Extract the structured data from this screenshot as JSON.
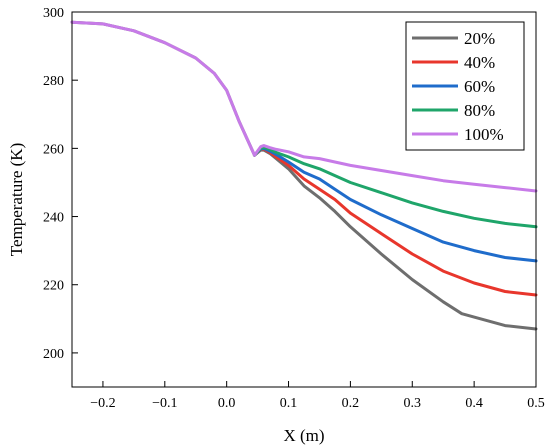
{
  "chart_data": {
    "type": "line",
    "xlabel": "X (m)",
    "ylabel": "Temperature (K)",
    "xlim": [
      -0.25,
      0.5
    ],
    "ylim": [
      190,
      300
    ],
    "x_ticks": [
      "-0.2",
      "-0.1",
      "0.0",
      "0.1",
      "0.2",
      "0.3",
      "0.4",
      "0.5"
    ],
    "x_tick_values": [
      -0.2,
      -0.1,
      0.0,
      0.1,
      0.2,
      0.3,
      0.4,
      0.5
    ],
    "y_ticks": [
      "200",
      "220",
      "240",
      "260",
      "280",
      "300"
    ],
    "y_tick_values": [
      200,
      220,
      240,
      260,
      280,
      300
    ],
    "grid": false,
    "legend_position": "top-right",
    "series": [
      {
        "name": "20%",
        "color": "#6e6e6e",
        "x": [
          -0.25,
          -0.2,
          -0.15,
          -0.1,
          -0.05,
          -0.02,
          0.0,
          0.02,
          0.045,
          0.055,
          0.06,
          0.07,
          0.08,
          0.1,
          0.125,
          0.15,
          0.175,
          0.2,
          0.25,
          0.3,
          0.35,
          0.38,
          0.4,
          0.45,
          0.5
        ],
        "y": [
          297,
          296.5,
          294.5,
          291,
          286.5,
          282,
          277,
          268,
          258,
          259.5,
          259.5,
          258.5,
          257,
          254,
          249,
          245.5,
          241.5,
          237,
          229,
          221.5,
          215,
          211.5,
          210.5,
          208,
          207
        ]
      },
      {
        "name": "40%",
        "color": "#e8362c",
        "x": [
          0.045,
          0.055,
          0.06,
          0.07,
          0.08,
          0.1,
          0.125,
          0.15,
          0.175,
          0.2,
          0.25,
          0.3,
          0.35,
          0.4,
          0.45,
          0.5
        ],
        "y": [
          258,
          259.7,
          259.8,
          258.8,
          257.5,
          255,
          251,
          248,
          245,
          241,
          235,
          229,
          224,
          220.5,
          218,
          217
        ]
      },
      {
        "name": "60%",
        "color": "#1f6ccb",
        "x": [
          0.045,
          0.055,
          0.06,
          0.07,
          0.08,
          0.1,
          0.125,
          0.15,
          0.175,
          0.2,
          0.25,
          0.3,
          0.35,
          0.4,
          0.45,
          0.5
        ],
        "y": [
          258,
          259.8,
          260,
          259.2,
          258.2,
          256,
          253,
          251,
          248,
          245,
          240.5,
          236.5,
          232.5,
          230,
          228,
          227
        ]
      },
      {
        "name": "80%",
        "color": "#1fa56a",
        "x": [
          0.045,
          0.055,
          0.06,
          0.07,
          0.08,
          0.1,
          0.125,
          0.15,
          0.175,
          0.2,
          0.25,
          0.3,
          0.35,
          0.4,
          0.45,
          0.5
        ],
        "y": [
          258,
          260,
          260.3,
          259.7,
          258.8,
          257.5,
          255.5,
          254,
          252,
          250,
          247,
          244,
          241.5,
          239.5,
          238,
          237
        ]
      },
      {
        "name": "100%",
        "color": "#c77be8",
        "x": [
          -0.25,
          -0.2,
          -0.15,
          -0.1,
          -0.05,
          -0.02,
          0.0,
          0.02,
          0.045,
          0.055,
          0.06,
          0.07,
          0.08,
          0.1,
          0.125,
          0.15,
          0.175,
          0.2,
          0.25,
          0.3,
          0.35,
          0.4,
          0.45,
          0.5
        ],
        "y": [
          297,
          296.5,
          294.5,
          291,
          286.5,
          282,
          277,
          268,
          258,
          260.5,
          260.8,
          260.2,
          259.7,
          259,
          257.5,
          257,
          256,
          255,
          253.5,
          252,
          250.5,
          249.5,
          248.5,
          247.5
        ]
      }
    ]
  }
}
